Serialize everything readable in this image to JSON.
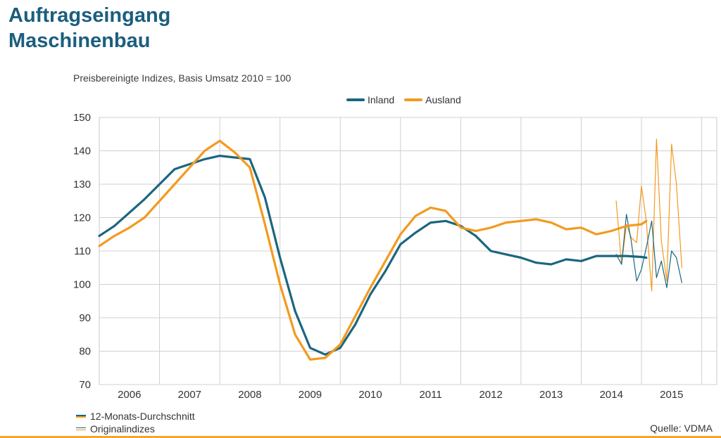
{
  "title_line1": "Auftragseingang",
  "title_line2": "Maschinenbau",
  "subtitle": "Preisbereinigte Indizes, Basis Umsatz 2010 = 100",
  "legend": [
    {
      "name": "Inland",
      "color": "#1b6680"
    },
    {
      "name": "Ausland",
      "color": "#f39a1e"
    }
  ],
  "notes": {
    "avg_label": "12-Monats-Durchschnitt",
    "orig_label": "Originalindizes"
  },
  "source": "Quelle: VDMA",
  "chart_data": {
    "type": "line",
    "title": "",
    "xlabel": "",
    "ylabel": "",
    "ylim": [
      70,
      150
    ],
    "yticks": [
      70,
      80,
      90,
      100,
      110,
      120,
      130,
      140,
      150
    ],
    "xlim": [
      2005.5,
      2015.75
    ],
    "xtick_labels": [
      "2006",
      "2007",
      "2008",
      "2009",
      "2010",
      "2011",
      "2012",
      "2013",
      "2014",
      "2015"
    ],
    "grid": true,
    "series": [
      {
        "name": "Inland",
        "style": "12-Monats-Durchschnitt",
        "color": "#1b6680",
        "points": [
          [
            2005.5,
            114.5
          ],
          [
            2005.75,
            117.5
          ],
          [
            2006.0,
            121.5
          ],
          [
            2006.25,
            125.5
          ],
          [
            2006.5,
            130
          ],
          [
            2006.75,
            134.5
          ],
          [
            2007.0,
            136
          ],
          [
            2007.25,
            137.5
          ],
          [
            2007.5,
            138.5
          ],
          [
            2007.75,
            138
          ],
          [
            2008.0,
            137.5
          ],
          [
            2008.25,
            126
          ],
          [
            2008.5,
            108
          ],
          [
            2008.75,
            92
          ],
          [
            2009.0,
            81
          ],
          [
            2009.25,
            79
          ],
          [
            2009.5,
            81
          ],
          [
            2009.75,
            88
          ],
          [
            2010.0,
            97
          ],
          [
            2010.25,
            104
          ],
          [
            2010.5,
            112
          ],
          [
            2010.75,
            115.5
          ],
          [
            2011.0,
            118.5
          ],
          [
            2011.25,
            119
          ],
          [
            2011.5,
            117.5
          ],
          [
            2011.75,
            114.5
          ],
          [
            2012.0,
            110
          ],
          [
            2012.25,
            109
          ],
          [
            2012.5,
            108
          ],
          [
            2012.75,
            106.5
          ],
          [
            2013.0,
            106
          ],
          [
            2013.25,
            107.5
          ],
          [
            2013.5,
            107
          ],
          [
            2013.75,
            108.5
          ],
          [
            2014.0,
            108.5
          ],
          [
            2014.25,
            108.5
          ],
          [
            2014.5,
            108.2
          ],
          [
            2014.58,
            108
          ]
        ]
      },
      {
        "name": "Ausland",
        "style": "12-Monats-Durchschnitt",
        "color": "#f39a1e",
        "points": [
          [
            2005.5,
            111.5
          ],
          [
            2005.75,
            114.5
          ],
          [
            2006.0,
            117
          ],
          [
            2006.25,
            120
          ],
          [
            2006.5,
            125
          ],
          [
            2006.75,
            130
          ],
          [
            2007.0,
            135
          ],
          [
            2007.25,
            140
          ],
          [
            2007.5,
            143
          ],
          [
            2007.75,
            139.5
          ],
          [
            2008.0,
            135
          ],
          [
            2008.25,
            118
          ],
          [
            2008.5,
            100
          ],
          [
            2008.75,
            85
          ],
          [
            2009.0,
            77.5
          ],
          [
            2009.25,
            78
          ],
          [
            2009.5,
            82
          ],
          [
            2009.75,
            90.5
          ],
          [
            2010.0,
            99
          ],
          [
            2010.25,
            107
          ],
          [
            2010.5,
            115
          ],
          [
            2010.75,
            120.5
          ],
          [
            2011.0,
            123
          ],
          [
            2011.25,
            122
          ],
          [
            2011.5,
            117
          ],
          [
            2011.75,
            116
          ],
          [
            2012.0,
            117
          ],
          [
            2012.25,
            118.5
          ],
          [
            2012.5,
            119
          ],
          [
            2012.75,
            119.5
          ],
          [
            2013.0,
            118.5
          ],
          [
            2013.25,
            116.5
          ],
          [
            2013.5,
            117
          ],
          [
            2013.75,
            115
          ],
          [
            2014.0,
            116
          ],
          [
            2014.25,
            117.5
          ],
          [
            2014.5,
            118
          ],
          [
            2014.58,
            119
          ]
        ]
      },
      {
        "name": "Inland",
        "style": "Originalindizes",
        "color": "#1b6680",
        "points": [
          [
            2014.08,
            109
          ],
          [
            2014.17,
            106
          ],
          [
            2014.25,
            121
          ],
          [
            2014.33,
            113
          ],
          [
            2014.42,
            101
          ],
          [
            2014.5,
            104.5
          ],
          [
            2014.58,
            111
          ],
          [
            2014.67,
            119
          ],
          [
            2014.75,
            102
          ],
          [
            2014.83,
            107
          ],
          [
            2014.92,
            99
          ],
          [
            2015.0,
            110
          ],
          [
            2015.08,
            108
          ],
          [
            2015.17,
            100.5
          ]
        ]
      },
      {
        "name": "Ausland",
        "style": "Originalindizes",
        "color": "#f39a1e",
        "points": [
          [
            2014.08,
            125
          ],
          [
            2014.17,
            106
          ],
          [
            2014.25,
            118
          ],
          [
            2014.33,
            114
          ],
          [
            2014.42,
            112.5
          ],
          [
            2014.5,
            129.5
          ],
          [
            2014.58,
            119
          ],
          [
            2014.67,
            98
          ],
          [
            2014.75,
            143.5
          ],
          [
            2014.83,
            113
          ],
          [
            2014.92,
            101
          ],
          [
            2015.0,
            142
          ],
          [
            2015.08,
            130
          ],
          [
            2015.17,
            105
          ]
        ]
      }
    ]
  }
}
